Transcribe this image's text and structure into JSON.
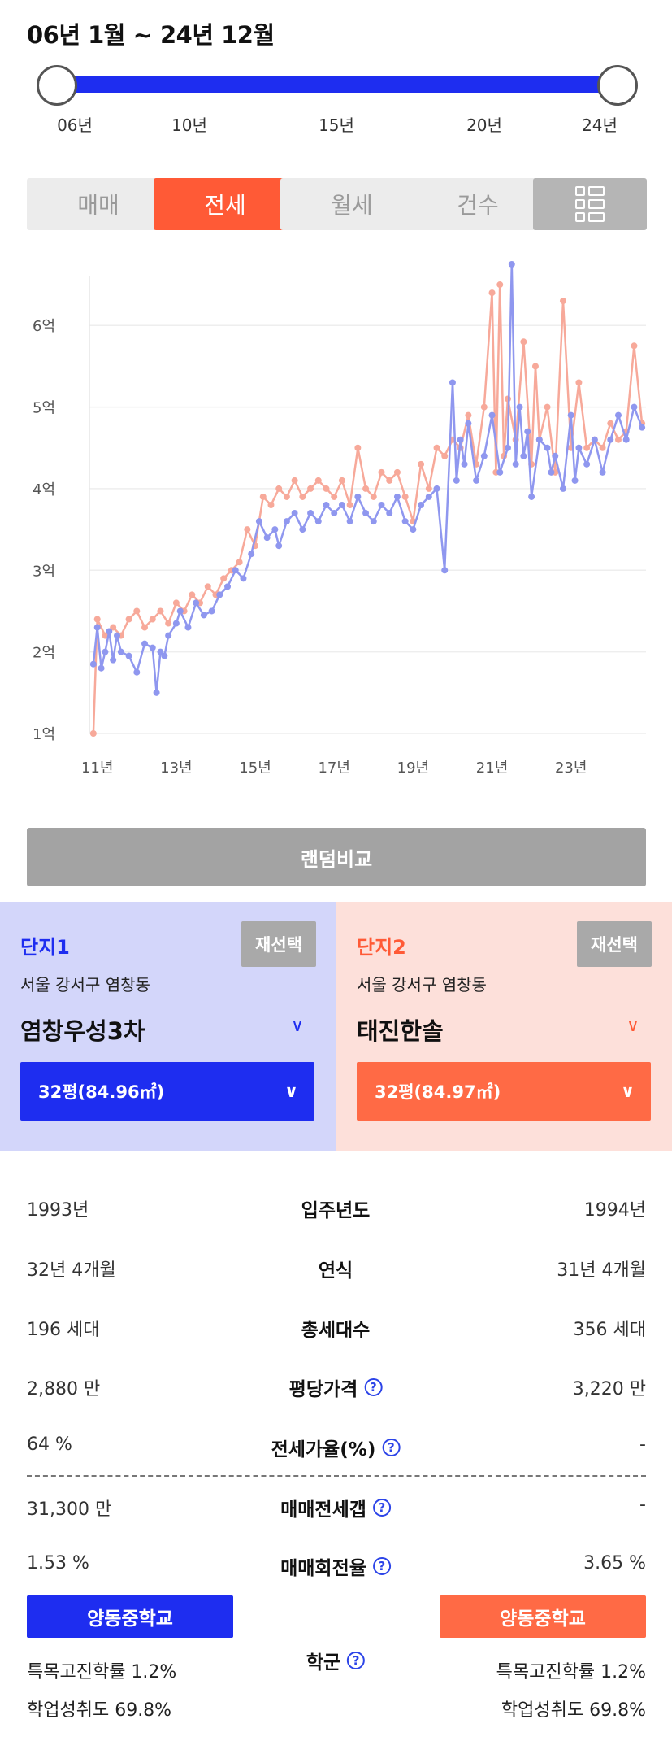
{
  "period": {
    "title": "06년 1월 ~ 24년 12월",
    "ticks": [
      "06년",
      "10년",
      "15년",
      "20년",
      "24년"
    ]
  },
  "tabs": [
    {
      "label": "매매",
      "active": false
    },
    {
      "label": "전세",
      "active": true
    },
    {
      "label": "월세",
      "active": false
    },
    {
      "label": "건수",
      "active": false
    }
  ],
  "list_icon": "list-view-icon",
  "colors": {
    "complex1": "#1e2df0",
    "complex2": "#ff6a45",
    "complex1_line": "#8f97ef",
    "complex2_line": "#f7a99a"
  },
  "chart_data": {
    "type": "line",
    "x_ticks": [
      "11년",
      "13년",
      "15년",
      "17년",
      "19년",
      "21년",
      "23년"
    ],
    "y_ticks": [
      "1억",
      "2억",
      "3억",
      "4억",
      "5억",
      "6억"
    ],
    "xlim": [
      2010.8,
      2024.9
    ],
    "ylim": [
      1,
      6.6
    ],
    "grid": true,
    "series": [
      {
        "x": [
          2010.9,
          2011.0,
          2011.1,
          2011.2,
          2011.3,
          2011.4,
          2011.5,
          2011.6,
          2011.8,
          2012.0,
          2012.2,
          2012.4,
          2012.5,
          2012.6,
          2012.7,
          2012.8,
          2013.0,
          2013.1,
          2013.3,
          2013.5,
          2013.7,
          2013.9,
          2014.1,
          2014.3,
          2014.5,
          2014.7,
          2014.9,
          2015.1,
          2015.3,
          2015.5,
          2015.6,
          2015.8,
          2016.0,
          2016.2,
          2016.4,
          2016.6,
          2016.8,
          2017.0,
          2017.2,
          2017.4,
          2017.6,
          2017.8,
          2018.0,
          2018.2,
          2018.4,
          2018.6,
          2018.8,
          2019.0,
          2019.2,
          2019.4,
          2019.6,
          2019.8,
          2020.0,
          2020.1,
          2020.2,
          2020.3,
          2020.4,
          2020.6,
          2020.8,
          2021.0,
          2021.2,
          2021.4,
          2021.5,
          2021.6,
          2021.7,
          2021.8,
          2021.9,
          2022.0,
          2022.2,
          2022.4,
          2022.5,
          2022.6,
          2022.8,
          2023.0,
          2023.1,
          2023.2,
          2023.4,
          2023.6,
          2023.8,
          2024.0,
          2024.2,
          2024.4,
          2024.6,
          2024.8
        ],
        "y": [
          1.85,
          2.3,
          1.8,
          2.0,
          2.25,
          1.9,
          2.2,
          2.0,
          1.95,
          1.75,
          2.1,
          2.05,
          1.5,
          2.0,
          1.95,
          2.2,
          2.35,
          2.5,
          2.3,
          2.6,
          2.45,
          2.5,
          2.7,
          2.8,
          3.0,
          2.9,
          3.2,
          3.6,
          3.4,
          3.5,
          3.3,
          3.6,
          3.7,
          3.5,
          3.7,
          3.6,
          3.8,
          3.7,
          3.8,
          3.6,
          3.9,
          3.7,
          3.6,
          3.8,
          3.7,
          3.9,
          3.6,
          3.5,
          3.8,
          3.9,
          4.0,
          3.0,
          5.3,
          4.1,
          4.6,
          4.3,
          4.8,
          4.1,
          4.4,
          4.9,
          4.2,
          4.5,
          6.75,
          4.3,
          5.0,
          4.4,
          4.7,
          3.9,
          4.6,
          4.5,
          4.2,
          4.4,
          4.0,
          4.9,
          4.1,
          4.5,
          4.3,
          4.6,
          4.2,
          4.6,
          4.9,
          4.6,
          5.0,
          4.75
        ]
      },
      {
        "x": [
          2010.9,
          2011.0,
          2011.2,
          2011.4,
          2011.6,
          2011.8,
          2012.0,
          2012.2,
          2012.4,
          2012.6,
          2012.8,
          2013.0,
          2013.2,
          2013.4,
          2013.6,
          2013.8,
          2014.0,
          2014.2,
          2014.4,
          2014.6,
          2014.8,
          2015.0,
          2015.2,
          2015.4,
          2015.6,
          2015.8,
          2016.0,
          2016.2,
          2016.4,
          2016.6,
          2016.8,
          2017.0,
          2017.2,
          2017.4,
          2017.6,
          2017.8,
          2018.0,
          2018.2,
          2018.4,
          2018.6,
          2018.8,
          2019.0,
          2019.2,
          2019.4,
          2019.6,
          2019.8,
          2020.0,
          2020.2,
          2020.4,
          2020.6,
          2020.8,
          2021.0,
          2021.1,
          2021.2,
          2021.3,
          2021.4,
          2021.6,
          2021.8,
          2022.0,
          2022.1,
          2022.2,
          2022.4,
          2022.6,
          2022.8,
          2023.0,
          2023.2,
          2023.4,
          2023.6,
          2023.8,
          2024.0,
          2024.2,
          2024.4,
          2024.6,
          2024.8
        ],
        "y": [
          1.0,
          2.4,
          2.2,
          2.3,
          2.2,
          2.4,
          2.5,
          2.3,
          2.4,
          2.5,
          2.35,
          2.6,
          2.5,
          2.7,
          2.6,
          2.8,
          2.7,
          2.9,
          3.0,
          3.1,
          3.5,
          3.3,
          3.9,
          3.8,
          4.0,
          3.9,
          4.1,
          3.9,
          4.0,
          4.1,
          4.0,
          3.9,
          4.1,
          3.8,
          4.5,
          4.0,
          3.9,
          4.2,
          4.1,
          4.2,
          3.9,
          3.6,
          4.3,
          4.0,
          4.5,
          4.4,
          4.6,
          4.5,
          4.9,
          4.3,
          5.0,
          6.4,
          4.2,
          6.5,
          4.4,
          5.1,
          4.6,
          5.8,
          4.3,
          5.5,
          4.6,
          5.0,
          4.2,
          6.3,
          4.5,
          5.3,
          4.5,
          4.6,
          4.5,
          4.8,
          4.6,
          4.7,
          5.75,
          4.8
        ]
      }
    ]
  },
  "random_compare": "랜덤비교",
  "complex1": {
    "label": "단지1",
    "reselect": "재선택",
    "region": "서울 강서구 염창동",
    "name": "염창우성3차",
    "size": "32평(84.96㎡)"
  },
  "complex2": {
    "label": "단지2",
    "reselect": "재선택",
    "region": "서울 강서구 염창동",
    "name": "태진한솔",
    "size": "32평(84.97㎡)"
  },
  "compare": {
    "rows": [
      {
        "label": "입주년도",
        "left": "1993년",
        "right": "1994년"
      },
      {
        "label": "연식",
        "left": "32년 4개월",
        "right": "31년 4개월"
      },
      {
        "label": "총세대수",
        "left": "196 세대",
        "right": "356 세대"
      },
      {
        "label": "평당가격",
        "left": "2,880 만",
        "right": "3,220 만"
      },
      {
        "label": "전세가율(%)",
        "left": "64 %",
        "right": "-"
      },
      {
        "label": "매매전세갭",
        "left": "31,300 만",
        "right": "-"
      },
      {
        "label": "매매회전율",
        "left": "1.53 %",
        "right": "3.65 %"
      }
    ],
    "help_glyph": "?"
  },
  "school": {
    "label": "학군",
    "left": {
      "name": "양동중학교",
      "stat1": "특목고진학률 1.2%",
      "stat2": "학업성취도 69.8%"
    },
    "right": {
      "name": "양동중학교",
      "stat1": "특목고진학률 1.2%",
      "stat2": "학업성취도 69.8%"
    }
  }
}
